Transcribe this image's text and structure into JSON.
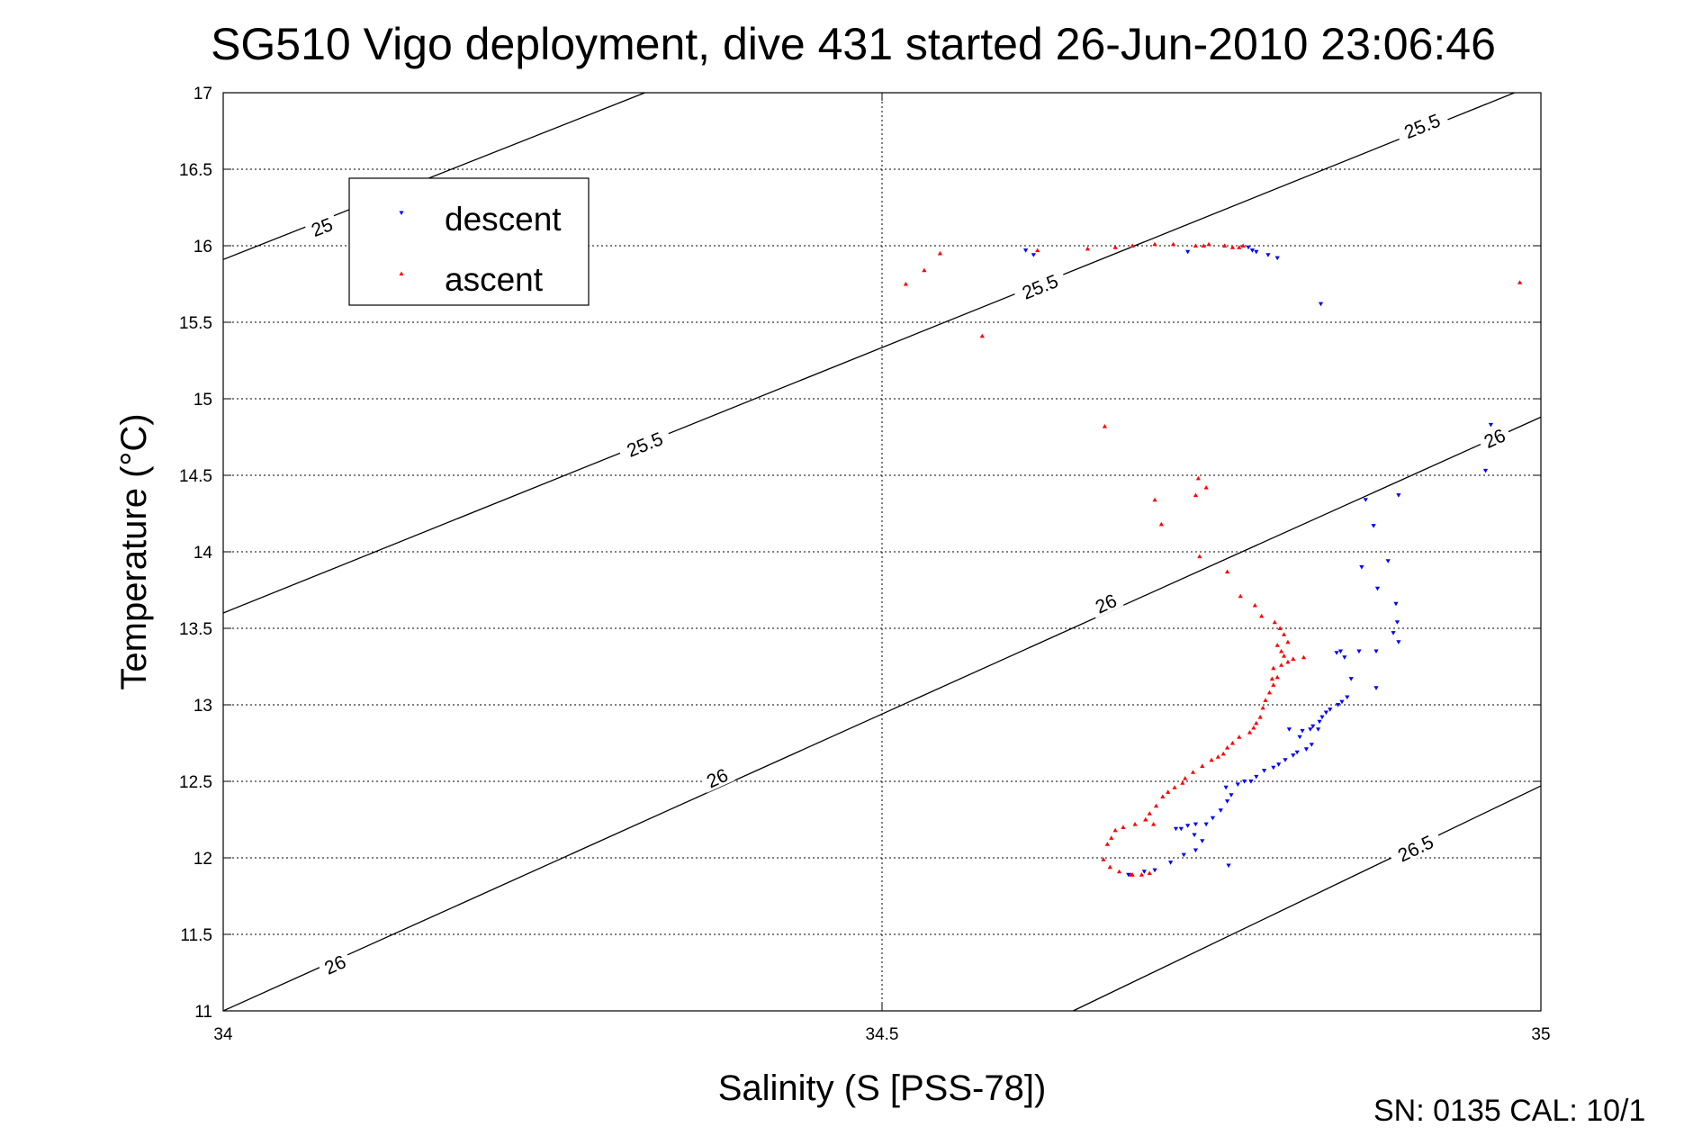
{
  "chart_data": {
    "type": "scatter",
    "title": "SG510 Vigo deployment, dive 431 started 26-Jun-2010 23:06:46",
    "xlabel": "Salinity (S [PSS-78])",
    "ylabel": "Temperature (°C)",
    "xlim": [
      34,
      35
    ],
    "ylim": [
      11,
      17
    ],
    "xticks": [
      "34",
      "34.5",
      "35"
    ],
    "yticks": [
      "11",
      "11.5",
      "12",
      "12.5",
      "13",
      "13.5",
      "14",
      "14.5",
      "15",
      "15.5",
      "16",
      "16.5",
      "17"
    ],
    "grid": true,
    "legend_position": "top-left",
    "footer": "SN: 0135  CAL: 10/1",
    "density_contours": [
      {
        "label": "25",
        "points": [
          [
            34.0,
            15.91
          ],
          [
            34.32,
            17.0
          ]
        ],
        "label_at": [
          34.075,
          16.12
        ]
      },
      {
        "label": "25.5",
        "points": [
          [
            34.0,
            13.6
          ],
          [
            34.98,
            17.0
          ]
        ],
        "label_at": [
          34.62,
          15.73
        ]
      },
      {
        "label": "25.5",
        "points": [
          [
            34.0,
            13.6
          ],
          [
            34.98,
            17.0
          ]
        ],
        "label_at": [
          34.32,
          14.7
        ]
      },
      {
        "label": "25.5",
        "points": [
          [
            34.0,
            13.6
          ],
          [
            34.98,
            17.0
          ]
        ],
        "label_at": [
          34.91,
          16.78
        ]
      },
      {
        "label": "26",
        "points": [
          [
            34.0,
            11.0
          ],
          [
            35.0,
            14.88
          ]
        ],
        "label_at": [
          34.085,
          11.3
        ]
      },
      {
        "label": "26",
        "points": [
          [
            34.0,
            11.0
          ],
          [
            35.0,
            14.88
          ]
        ],
        "label_at": [
          34.375,
          12.52
        ]
      },
      {
        "label": "26",
        "points": [
          [
            34.0,
            11.0
          ],
          [
            35.0,
            14.88
          ]
        ],
        "label_at": [
          34.67,
          13.66
        ]
      },
      {
        "label": "26",
        "points": [
          [
            34.0,
            11.0
          ],
          [
            35.0,
            14.88
          ]
        ],
        "label_at": [
          34.965,
          14.74
        ]
      },
      {
        "label": "26.5",
        "points": [
          [
            34.645,
            11.0
          ],
          [
            35.0,
            12.47
          ]
        ],
        "label_at": [
          34.905,
          12.06
        ]
      }
    ],
    "series": [
      {
        "name": "descent",
        "color": "#0000ff",
        "marker": "triangle-down",
        "points": [
          [
            34.609,
            15.97
          ],
          [
            34.615,
            15.94
          ],
          [
            34.732,
            15.96
          ],
          [
            34.778,
            15.99
          ],
          [
            34.781,
            15.97
          ],
          [
            34.784,
            15.96
          ],
          [
            34.793,
            15.94
          ],
          [
            34.8,
            15.92
          ],
          [
            34.833,
            15.62
          ],
          [
            34.962,
            14.83
          ],
          [
            34.958,
            14.53
          ],
          [
            34.892,
            14.37
          ],
          [
            34.867,
            14.34
          ],
          [
            34.873,
            14.17
          ],
          [
            34.884,
            13.94
          ],
          [
            34.864,
            13.9
          ],
          [
            34.876,
            13.76
          ],
          [
            34.89,
            13.66
          ],
          [
            34.891,
            13.54
          ],
          [
            34.888,
            13.47
          ],
          [
            34.892,
            13.41
          ],
          [
            34.875,
            13.35
          ],
          [
            34.862,
            13.35
          ],
          [
            34.848,
            13.35
          ],
          [
            34.845,
            13.34
          ],
          [
            34.851,
            13.31
          ],
          [
            34.856,
            13.17
          ],
          [
            34.875,
            13.11
          ],
          [
            34.853,
            13.05
          ],
          [
            34.849,
            13.02
          ],
          [
            34.846,
            13.0
          ],
          [
            34.84,
            12.97
          ],
          [
            34.837,
            12.95
          ],
          [
            34.834,
            12.92
          ],
          [
            34.832,
            12.89
          ],
          [
            34.827,
            12.86
          ],
          [
            34.831,
            12.84
          ],
          [
            34.825,
            12.84
          ],
          [
            34.819,
            12.83
          ],
          [
            34.809,
            12.84
          ],
          [
            34.817,
            12.79
          ],
          [
            34.826,
            12.74
          ],
          [
            34.822,
            12.71
          ],
          [
            34.815,
            12.69
          ],
          [
            34.812,
            12.67
          ],
          [
            34.806,
            12.64
          ],
          [
            34.801,
            12.61
          ],
          [
            34.797,
            12.59
          ],
          [
            34.79,
            12.57
          ],
          [
            34.784,
            12.53
          ],
          [
            34.775,
            12.5
          ],
          [
            34.78,
            12.5
          ],
          [
            34.77,
            12.48
          ],
          [
            34.761,
            12.46
          ],
          [
            34.765,
            12.41
          ],
          [
            34.762,
            12.37
          ],
          [
            34.757,
            12.31
          ],
          [
            34.751,
            12.26
          ],
          [
            34.746,
            12.22
          ],
          [
            34.738,
            12.22
          ],
          [
            34.732,
            12.21
          ],
          [
            34.727,
            12.19
          ],
          [
            34.723,
            12.19
          ],
          [
            34.738,
            12.05
          ],
          [
            34.763,
            11.95
          ],
          [
            34.737,
            12.15
          ],
          [
            34.743,
            12.11
          ],
          [
            34.729,
            12.02
          ],
          [
            34.719,
            11.97
          ],
          [
            34.707,
            11.92
          ],
          [
            34.699,
            11.91
          ],
          [
            34.687,
            11.89
          ]
        ]
      },
      {
        "name": "ascent",
        "color": "#ff0000",
        "marker": "triangle-up",
        "points": [
          [
            34.518,
            15.75
          ],
          [
            34.532,
            15.84
          ],
          [
            34.544,
            15.95
          ],
          [
            34.576,
            15.41
          ],
          [
            34.618,
            15.97
          ],
          [
            34.656,
            15.98
          ],
          [
            34.677,
            15.99
          ],
          [
            34.69,
            16.0
          ],
          [
            34.707,
            16.01
          ],
          [
            34.721,
            16.01
          ],
          [
            34.738,
            16.0
          ],
          [
            34.744,
            16.0
          ],
          [
            34.748,
            16.01
          ],
          [
            34.76,
            16.0
          ],
          [
            34.766,
            15.99
          ],
          [
            34.771,
            15.99
          ],
          [
            34.774,
            16.0
          ],
          [
            34.984,
            15.76
          ],
          [
            34.669,
            14.82
          ],
          [
            34.707,
            14.34
          ],
          [
            34.712,
            14.18
          ],
          [
            34.738,
            14.37
          ],
          [
            34.74,
            14.48
          ],
          [
            34.746,
            14.42
          ],
          [
            34.741,
            13.97
          ],
          [
            34.762,
            13.87
          ],
          [
            34.772,
            13.71
          ],
          [
            34.783,
            13.65
          ],
          [
            34.788,
            13.58
          ],
          [
            34.798,
            13.54
          ],
          [
            34.802,
            13.5
          ],
          [
            34.805,
            13.46
          ],
          [
            34.808,
            13.41
          ],
          [
            34.8,
            13.39
          ],
          [
            34.803,
            13.35
          ],
          [
            34.805,
            13.32
          ],
          [
            34.812,
            13.3
          ],
          [
            34.808,
            13.28
          ],
          [
            34.803,
            13.26
          ],
          [
            34.797,
            13.24
          ],
          [
            34.8,
            13.18
          ],
          [
            34.797,
            13.13
          ],
          [
            34.794,
            13.08
          ],
          [
            34.791,
            13.03
          ],
          [
            34.789,
            12.98
          ],
          [
            34.787,
            12.92
          ],
          [
            34.784,
            12.88
          ],
          [
            34.782,
            12.85
          ],
          [
            34.779,
            12.82
          ],
          [
            34.771,
            12.79
          ],
          [
            34.766,
            12.75
          ],
          [
            34.762,
            12.72
          ],
          [
            34.759,
            12.68
          ],
          [
            34.755,
            12.66
          ],
          [
            34.75,
            12.64
          ],
          [
            34.743,
            12.6
          ],
          [
            34.736,
            12.56
          ],
          [
            34.73,
            12.52
          ],
          [
            34.728,
            12.49
          ],
          [
            34.722,
            12.46
          ],
          [
            34.717,
            12.43
          ],
          [
            34.713,
            12.4
          ],
          [
            34.708,
            12.34
          ],
          [
            34.703,
            12.29
          ],
          [
            34.7,
            12.25
          ],
          [
            34.692,
            12.22
          ],
          [
            34.683,
            12.2
          ],
          [
            34.677,
            12.18
          ],
          [
            34.7,
            12.25
          ],
          [
            34.706,
            12.22
          ],
          [
            34.674,
            12.13
          ],
          [
            34.671,
            12.09
          ],
          [
            34.668,
            11.99
          ],
          [
            34.673,
            11.94
          ],
          [
            34.68,
            11.91
          ],
          [
            34.689,
            11.89
          ],
          [
            34.697,
            11.89
          ],
          [
            34.703,
            11.9
          ],
          [
            34.69,
            11.89
          ],
          [
            34.796,
            13.17
          ],
          [
            34.82,
            13.31
          ]
        ]
      }
    ]
  }
}
